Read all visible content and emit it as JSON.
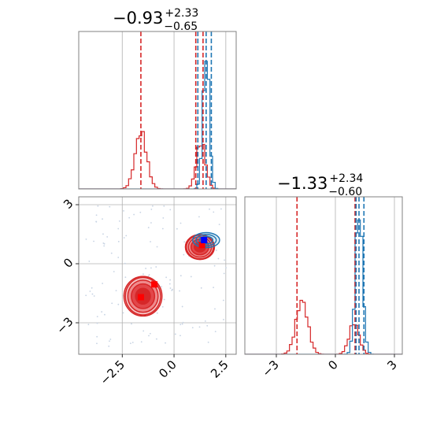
{
  "chart_data": {
    "type": "corner",
    "colors": {
      "red": "#d62728",
      "blue": "#1f77b4",
      "grid": "#b0b0b0",
      "axes": "#808080"
    },
    "panels": [
      {
        "id": "hist-1",
        "type": "histogram",
        "title": {
          "main": "−0.93",
          "sup": "+2.33",
          "sub": "−0.65"
        },
        "xlim": [
          -4.6,
          3.0
        ],
        "xticks": [
          -2.5,
          0.0,
          2.5
        ],
        "series": [
          {
            "color": "red",
            "peaks": [
              {
                "mu": -1.6,
                "sigma": 0.28,
                "h": 0.36
              },
              {
                "mu": 1.3,
                "sigma": 0.22,
                "h": 0.3
              }
            ]
          },
          {
            "color": "blue",
            "peaks": [
              {
                "mu": 1.55,
                "sigma": 0.15,
                "h": 0.88
              }
            ]
          }
        ],
        "red_quantiles": [
          -1.6,
          1.05,
          1.4
        ],
        "blue_quantiles": [
          1.15,
          1.55,
          1.8
        ]
      },
      {
        "id": "scatter-21",
        "type": "contour",
        "xlim": [
          -4.6,
          3.0
        ],
        "ylim": [
          -4.6,
          3.4
        ],
        "xticks": [
          -2.5,
          0.0,
          2.5
        ],
        "xtick_labels": [
          "−2.5",
          "0.0",
          "2.5"
        ],
        "yticks": [
          3,
          0,
          -3
        ],
        "ytick_labels": [
          "3",
          "0",
          "−3"
        ],
        "red_blobs": [
          {
            "cx": -1.5,
            "cy": -1.65,
            "rx": 0.85,
            "ry": 0.95
          },
          {
            "cx": 1.25,
            "cy": 0.85,
            "rx": 0.65,
            "ry": 0.6
          }
        ],
        "blue_blobs": [
          {
            "cx": 1.55,
            "cy": 1.2,
            "rx": 0.65,
            "ry": 0.38
          }
        ],
        "red_markers": [
          {
            "x": -1.6,
            "y": -1.7
          },
          {
            "x": -0.95,
            "y": -1.05
          },
          {
            "x": 1.35,
            "y": 0.95
          }
        ],
        "blue_markers": [
          {
            "x": 1.45,
            "y": 1.2
          }
        ]
      },
      {
        "id": "hist-2",
        "type": "histogram",
        "title": {
          "main": "−1.33",
          "sup": "+2.34",
          "sub": "−0.60"
        },
        "xlim": [
          -4.6,
          3.4
        ],
        "xticks": [
          -3,
          0,
          3
        ],
        "xtick_labels": [
          "−3",
          "0",
          "3"
        ],
        "series": [
          {
            "color": "red",
            "peaks": [
              {
                "mu": -1.7,
                "sigma": 0.3,
                "h": 0.34
              },
              {
                "mu": 0.95,
                "sigma": 0.25,
                "h": 0.2
              }
            ]
          },
          {
            "color": "blue",
            "peaks": [
              {
                "mu": 1.2,
                "sigma": 0.18,
                "h": 0.93
              }
            ]
          }
        ],
        "red_quantiles": [
          -1.95,
          1.0,
          1.05
        ],
        "blue_quantiles": [
          1.05,
          1.2,
          1.45
        ]
      }
    ]
  }
}
